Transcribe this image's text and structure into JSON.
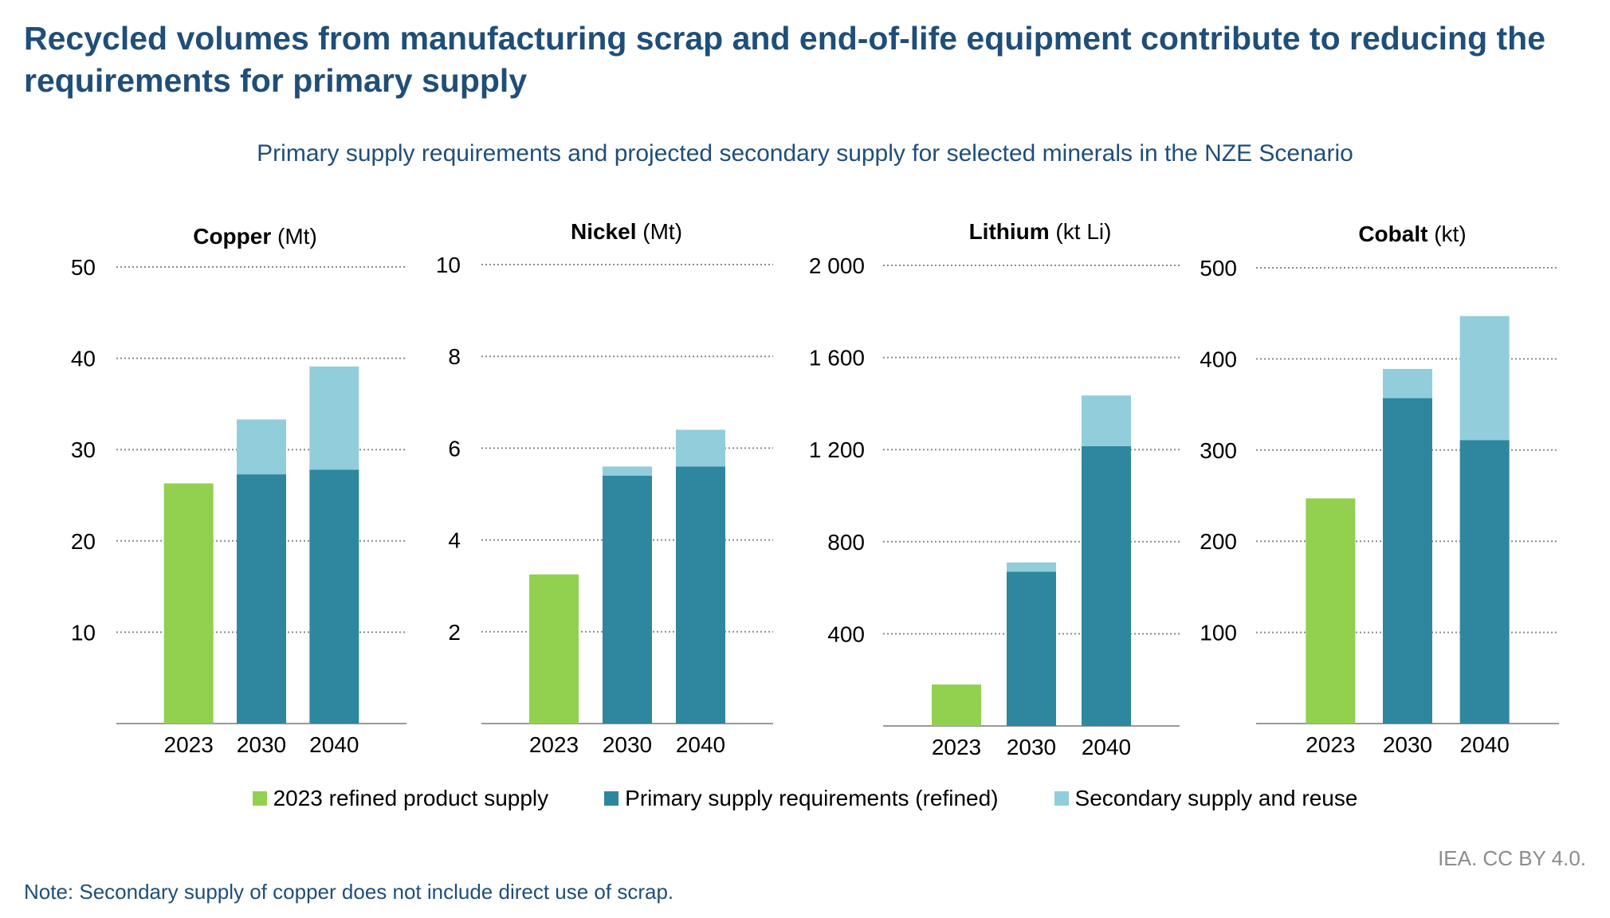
{
  "title": "Recycled volumes from manufacturing scrap and end-of-life equipment contribute to reducing the requirements for primary supply",
  "subtitle": "Primary supply requirements and projected secondary supply for selected minerals in the NZE Scenario",
  "colors": {
    "refined_2023": "#92d050",
    "primary": "#2e879e",
    "secondary": "#92cddc"
  },
  "legend": [
    {
      "label": "2023 refined product supply",
      "color": "#92d050"
    },
    {
      "label": "Primary supply requirements (refined)",
      "color": "#2e879e"
    },
    {
      "label": "Secondary supply and reuse",
      "color": "#92cddc"
    }
  ],
  "source": "IEA. CC BY 4.0.",
  "note": "Note: Secondary supply of copper does not include direct use of scrap.",
  "chart_data": [
    {
      "type": "bar",
      "stacked": true,
      "title_bold": "Copper",
      "title_unit": "(Mt)",
      "categories": [
        "2023",
        "2030",
        "2040"
      ],
      "ylim": [
        0,
        50
      ],
      "yticks": [
        10,
        20,
        30,
        40,
        50
      ],
      "ytick_labels": [
        "10",
        "20",
        "30",
        "40",
        "50"
      ],
      "grid": true,
      "series": [
        {
          "name": "2023 refined product supply",
          "values": [
            26.3,
            0,
            0
          ]
        },
        {
          "name": "Primary supply requirements (refined)",
          "values": [
            0,
            27.3,
            27.8
          ]
        },
        {
          "name": "Secondary supply and reuse",
          "values": [
            0,
            6.0,
            11.3
          ]
        }
      ]
    },
    {
      "type": "bar",
      "stacked": true,
      "title_bold": "Nickel",
      "title_unit": "(Mt)",
      "categories": [
        "2023",
        "2030",
        "2040"
      ],
      "ylim": [
        0,
        10
      ],
      "yticks": [
        2,
        4,
        6,
        8,
        10
      ],
      "ytick_labels": [
        "2",
        "4",
        "6",
        "8",
        "10"
      ],
      "grid": true,
      "series": [
        {
          "name": "2023 refined product supply",
          "values": [
            3.25,
            0,
            0
          ]
        },
        {
          "name": "Primary supply requirements (refined)",
          "values": [
            0,
            5.4,
            5.6
          ]
        },
        {
          "name": "Secondary supply and reuse",
          "values": [
            0,
            0.2,
            0.8
          ]
        }
      ]
    },
    {
      "type": "bar",
      "stacked": true,
      "title_bold": "Lithium",
      "title_unit": "(kt Li)",
      "categories": [
        "2023",
        "2030",
        "2040"
      ],
      "ylim": [
        0,
        2000
      ],
      "yticks": [
        400,
        800,
        1200,
        1600,
        2000
      ],
      "ytick_labels": [
        "400",
        "800",
        "1 200",
        "1 600",
        "2 000"
      ],
      "grid": true,
      "series": [
        {
          "name": "2023 refined product supply",
          "values": [
            180,
            0,
            0
          ]
        },
        {
          "name": "Primary supply requirements (refined)",
          "values": [
            0,
            670,
            1215
          ]
        },
        {
          "name": "Secondary supply and reuse",
          "values": [
            0,
            40,
            220
          ]
        }
      ]
    },
    {
      "type": "bar",
      "stacked": true,
      "title_bold": "Cobalt",
      "title_unit": "(kt)",
      "categories": [
        "2023",
        "2030",
        "2040"
      ],
      "ylim": [
        0,
        500
      ],
      "yticks": [
        100,
        200,
        300,
        400,
        500
      ],
      "ytick_labels": [
        "100",
        "200",
        "300",
        "400",
        "500"
      ],
      "grid": true,
      "series": [
        {
          "name": "2023 refined product supply",
          "values": [
            247,
            0,
            0
          ]
        },
        {
          "name": "Primary supply requirements (refined)",
          "values": [
            0,
            357,
            311
          ]
        },
        {
          "name": "Secondary supply and reuse",
          "values": [
            0,
            32,
            136
          ]
        }
      ]
    }
  ]
}
